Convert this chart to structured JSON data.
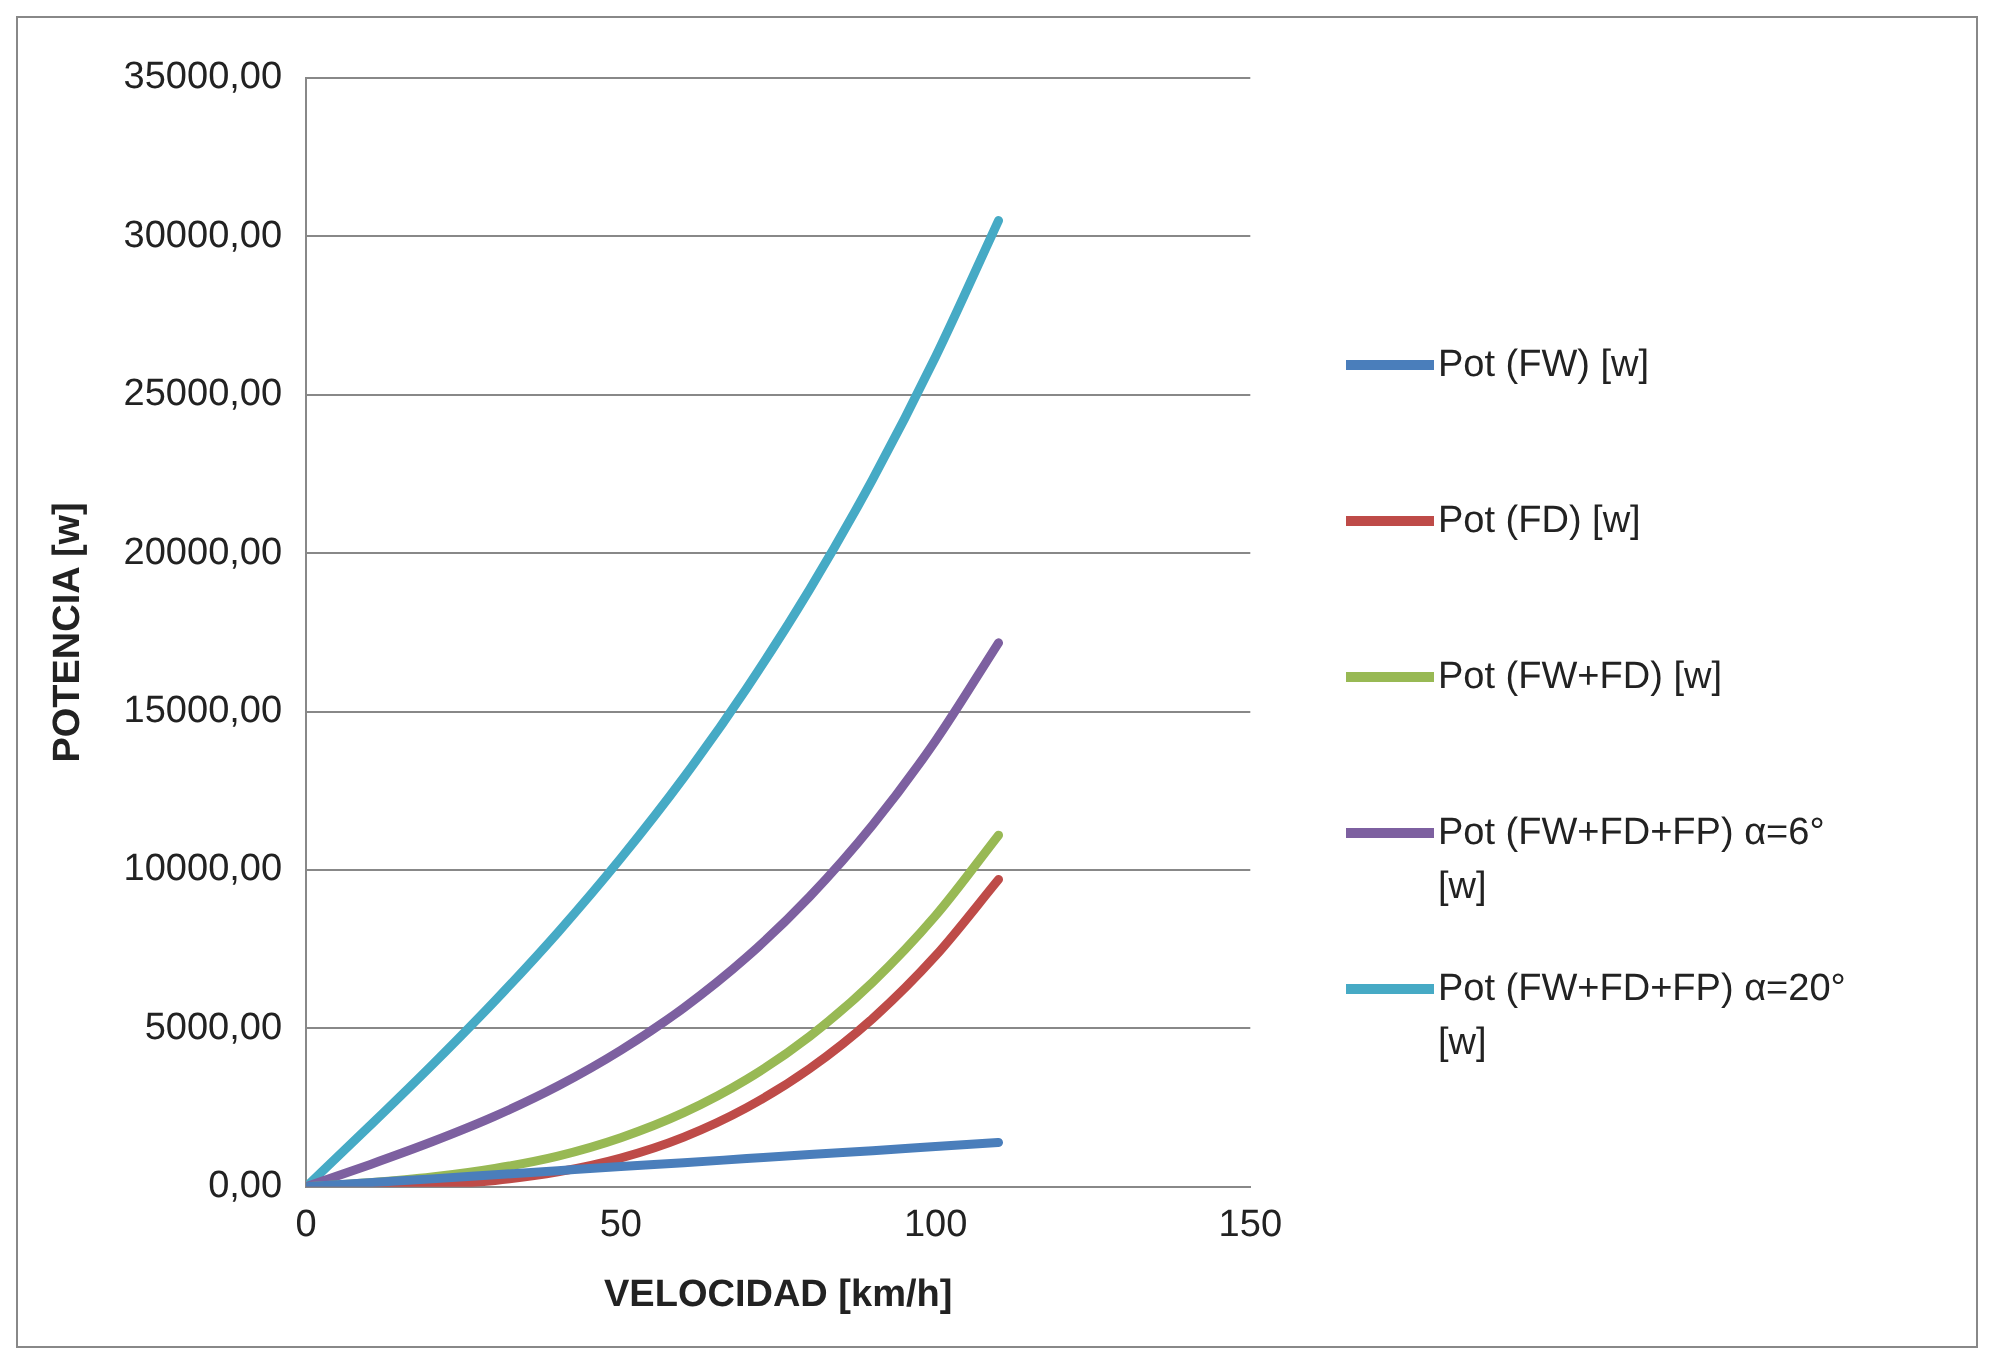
{
  "chart_data": {
    "type": "line",
    "xlabel": "VELOCIDAD [km/h]",
    "ylabel": "POTENCIA [w]",
    "x": [
      0,
      10,
      20,
      30,
      40,
      50,
      60,
      70,
      80,
      90,
      100,
      110
    ],
    "xlim": [
      0,
      150
    ],
    "xticks": [
      0,
      50,
      100,
      150
    ],
    "ylim": [
      0,
      35000
    ],
    "yticks": [
      {
        "value": 0,
        "label": "0,00"
      },
      {
        "value": 5000,
        "label": "5000,00"
      },
      {
        "value": 10000,
        "label": "10000,00"
      },
      {
        "value": 15000,
        "label": "15000,00"
      },
      {
        "value": 20000,
        "label": "20000,00"
      },
      {
        "value": 25000,
        "label": "25000,00"
      },
      {
        "value": 30000,
        "label": "30000,00"
      },
      {
        "value": 35000,
        "label": "35000,00"
      }
    ],
    "grid": "y",
    "legend": "right",
    "marker": "none",
    "line_style": "solid",
    "series": [
      {
        "name": "Pot (FW) [w]",
        "color": "#4a7ebb",
        "values": [
          0,
          130,
          250,
          380,
          510,
          640,
          760,
          890,
          1020,
          1140,
          1270,
          1400
        ]
      },
      {
        "name": "Pot (FD) [w]",
        "color": "#be4b48",
        "values": [
          0,
          10,
          60,
          200,
          470,
          910,
          1570,
          2500,
          3730,
          5310,
          7290,
          9700
        ]
      },
      {
        "name": "Pot (FW+FD) [w]",
        "color": "#98b954",
        "values": [
          0,
          130,
          310,
          580,
          970,
          1550,
          2340,
          3390,
          4750,
          6460,
          8560,
          11100
        ]
      },
      {
        "name": "Pot (FW+FD+FP) α=6° [w]",
        "color": "#7d60a0",
        "values": [
          0,
          690,
          1420,
          2230,
          3180,
          4310,
          5650,
          7250,
          9160,
          11420,
          14080,
          17170
        ]
      },
      {
        "name": "Pot (FW+FD+FP) α=20° [w]",
        "color": "#46aac5",
        "values": [
          0,
          1900,
          3840,
          5870,
          8030,
          10370,
          12920,
          15740,
          18860,
          22330,
          26200,
          30500
        ]
      }
    ]
  }
}
